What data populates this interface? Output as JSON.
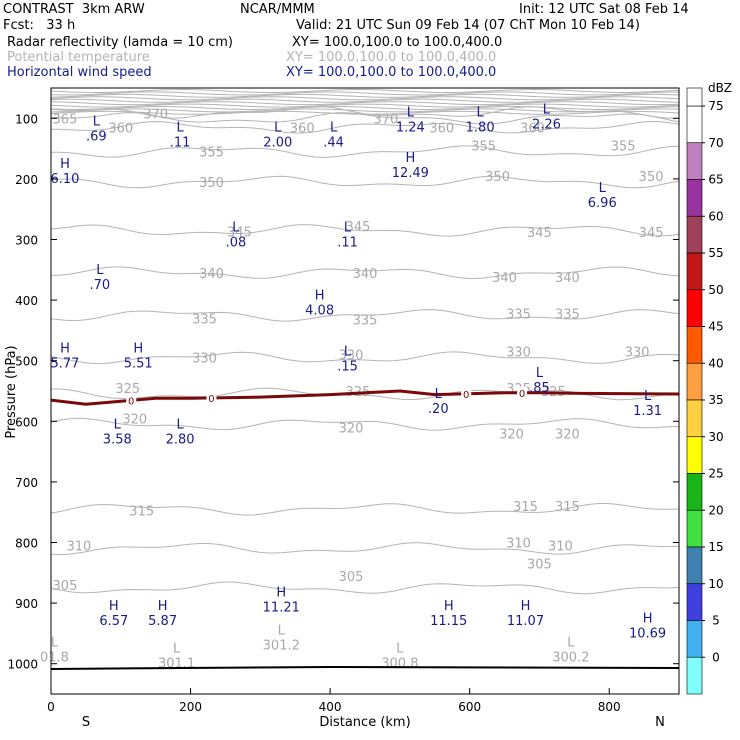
{
  "header": {
    "line1_left": "CONTRAST  3km ARW",
    "line1_mid": "NCAR/MMM",
    "line1_right": "Init: 12 UTC Sat 08 Feb 14",
    "line2_left": "Fcst:   33 h",
    "line2_right": "Valid: 21 UTC Sun 09 Feb 14 (07 ChT Mon 10 Feb 14)",
    "fields": [
      {
        "name": "Radar reflectivity (lamda = 10 cm)",
        "xy": "XY= 100.0,100.0 to 100.0,400.0",
        "color": "#000000"
      },
      {
        "name": "Potential temperature",
        "xy": "XY= 100.0,100.0 to 100.0,400.0",
        "color": "#b4b4b4"
      },
      {
        "name": "Horizontal wind speed",
        "xy": "XY= 100.0,100.0 to 100.0,400.0",
        "color": "#1a1a8c"
      }
    ]
  },
  "chart_data": {
    "type": "cross-section",
    "xlabel": "Distance (km)",
    "ylabel": "Pressure (hPa)",
    "xlim": [
      0,
      900
    ],
    "ylim": [
      1050,
      50
    ],
    "x_ticks": [
      0,
      200,
      400,
      600,
      800
    ],
    "y_ticks": [
      100,
      200,
      300,
      400,
      500,
      600,
      700,
      800,
      900,
      1000
    ],
    "x_end_labels": {
      "left": "S",
      "right": "N"
    },
    "colorbar": {
      "unit": "dBZ",
      "levels": [
        75,
        70,
        65,
        60,
        55,
        50,
        45,
        40,
        35,
        30,
        25,
        20,
        15,
        10,
        5,
        0
      ],
      "colors": [
        "#ffffff",
        "#c080c0",
        "#9933a0",
        "#a0405a",
        "#c01818",
        "#ff0000",
        "#ff5a00",
        "#ffa040",
        "#ffd040",
        "#ffff00",
        "#18b418",
        "#40e040",
        "#4080b0",
        "#4040e0",
        "#40b0f0",
        "#80ffff"
      ]
    },
    "theta_contours": [
      {
        "value": 305,
        "p": 875,
        "labels": [
          [
            20,
            870
          ],
          [
            430,
            855
          ],
          [
            700,
            835
          ]
        ]
      },
      {
        "value": 310,
        "p": 810,
        "labels": [
          [
            40,
            805
          ],
          [
            670,
            800
          ],
          [
            730,
            805
          ]
        ]
      },
      {
        "value": 315,
        "p": 745,
        "labels": [
          [
            130,
            747
          ],
          [
            680,
            740
          ],
          [
            740,
            740
          ]
        ]
      },
      {
        "value": 320,
        "p": 605,
        "labels": [
          [
            120,
            595
          ],
          [
            430,
            610
          ],
          [
            660,
            620
          ],
          [
            740,
            620
          ]
        ]
      },
      {
        "value": 325,
        "p": 555,
        "labels": [
          [
            110,
            545
          ],
          [
            440,
            550
          ],
          [
            670,
            545
          ],
          [
            720,
            550
          ]
        ]
      },
      {
        "value": 330,
        "p": 495,
        "labels": [
          [
            220,
            495
          ],
          [
            430,
            490
          ],
          [
            670,
            485
          ],
          [
            840,
            485
          ]
        ]
      },
      {
        "value": 335,
        "p": 425,
        "labels": [
          [
            220,
            430
          ],
          [
            450,
            432
          ],
          [
            670,
            422
          ],
          [
            740,
            422
          ]
        ]
      },
      {
        "value": 340,
        "p": 355,
        "labels": [
          [
            230,
            355
          ],
          [
            450,
            355
          ],
          [
            650,
            362
          ],
          [
            740,
            362
          ]
        ]
      },
      {
        "value": 345,
        "p": 285,
        "labels": [
          [
            270,
            287
          ],
          [
            440,
            278
          ],
          [
            700,
            288
          ],
          [
            860,
            288
          ]
        ]
      },
      {
        "value": 350,
        "p": 205,
        "labels": [
          [
            230,
            205
          ],
          [
            640,
            195
          ],
          [
            860,
            195
          ]
        ]
      },
      {
        "value": 355,
        "p": 155,
        "labels": [
          [
            230,
            155
          ],
          [
            620,
            145
          ],
          [
            820,
            145
          ]
        ]
      },
      {
        "value": 360,
        "p": 115,
        "labels": [
          [
            100,
            115
          ],
          [
            360,
            115
          ],
          [
            560,
            115
          ],
          [
            690,
            115
          ]
        ]
      },
      {
        "value": 365,
        "p": 100,
        "labels": [
          [
            20,
            100
          ]
        ]
      },
      {
        "value": 370,
        "p": 90,
        "labels": [
          [
            150,
            92
          ],
          [
            480,
            100
          ]
        ]
      }
    ],
    "freezing_line": {
      "label": "0",
      "points": [
        [
          0,
          565
        ],
        [
          50,
          572
        ],
        [
          100,
          567
        ],
        [
          150,
          562
        ],
        [
          200,
          562
        ],
        [
          300,
          560
        ],
        [
          400,
          556
        ],
        [
          500,
          550
        ],
        [
          550,
          556
        ],
        [
          650,
          553
        ],
        [
          700,
          553
        ],
        [
          760,
          554
        ],
        [
          900,
          555
        ]
      ],
      "label_x": [
        115,
        230,
        595,
        675
      ]
    },
    "terrain_line": {
      "p": 1007
    },
    "wind_extrema": [
      {
        "type": "L",
        "value": ".69",
        "x": 65,
        "p": 115
      },
      {
        "type": "L",
        "value": ".11",
        "x": 185,
        "p": 125
      },
      {
        "type": "L",
        "value": "2.00",
        "x": 325,
        "p": 125
      },
      {
        "type": "L",
        "value": ".44",
        "x": 405,
        "p": 125
      },
      {
        "type": "L",
        "value": "1.24",
        "x": 515,
        "p": 100
      },
      {
        "type": "L",
        "value": "1.80",
        "x": 615,
        "p": 100
      },
      {
        "type": "L",
        "value": "2.26",
        "x": 710,
        "p": 95
      },
      {
        "type": "H",
        "value": "6.10",
        "x": 20,
        "p": 185
      },
      {
        "type": "H",
        "value": "12.49",
        "x": 515,
        "p": 175
      },
      {
        "type": "L",
        "value": "6.96",
        "x": 790,
        "p": 225
      },
      {
        "type": "L",
        "value": ".08",
        "x": 265,
        "p": 290
      },
      {
        "type": "L",
        "value": ".11",
        "x": 425,
        "p": 290
      },
      {
        "type": "L",
        "value": ".70",
        "x": 70,
        "p": 360
      },
      {
        "type": "H",
        "value": "4.08",
        "x": 385,
        "p": 402
      },
      {
        "type": "H",
        "value": "5.77",
        "x": 20,
        "p": 490
      },
      {
        "type": "H",
        "value": "5.51",
        "x": 125,
        "p": 490
      },
      {
        "type": "L",
        "value": ".15",
        "x": 425,
        "p": 495
      },
      {
        "type": "L",
        "value": ".85",
        "x": 700,
        "p": 530
      },
      {
        "type": "L",
        "value": ".20",
        "x": 555,
        "p": 565
      },
      {
        "type": "L",
        "value": "1.31",
        "x": 855,
        "p": 568
      },
      {
        "type": "L",
        "value": "3.58",
        "x": 95,
        "p": 615
      },
      {
        "type": "L",
        "value": "2.80",
        "x": 185,
        "p": 615
      },
      {
        "type": "H",
        "value": "11.21",
        "x": 330,
        "p": 892
      },
      {
        "type": "H",
        "value": "6.57",
        "x": 90,
        "p": 915
      },
      {
        "type": "H",
        "value": "5.87",
        "x": 160,
        "p": 915
      },
      {
        "type": "H",
        "value": "11.15",
        "x": 570,
        "p": 915
      },
      {
        "type": "H",
        "value": "11.07",
        "x": 680,
        "p": 915
      },
      {
        "type": "H",
        "value": "10.69",
        "x": 855,
        "p": 935
      }
    ],
    "theta_extrema": [
      {
        "type": "L",
        "value": "01.8",
        "x": 5,
        "p": 985
      },
      {
        "type": "L",
        "value": "301.1",
        "x": 180,
        "p": 995
      },
      {
        "type": "L",
        "value": "301.2",
        "x": 330,
        "p": 965
      },
      {
        "type": "L",
        "value": "300.8",
        "x": 500,
        "p": 995
      },
      {
        "type": "L",
        "value": "300.2",
        "x": 745,
        "p": 985
      }
    ]
  }
}
